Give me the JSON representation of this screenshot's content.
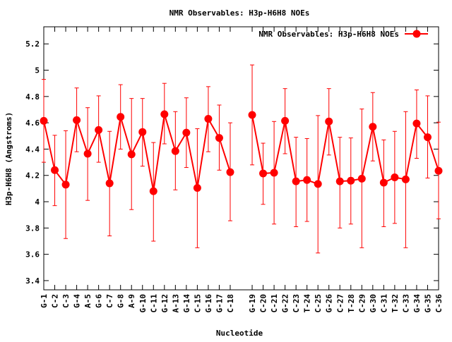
{
  "chart_data": {
    "type": "line",
    "title": "NMR Observables: H3p-H6H8 NOEs",
    "xlabel": "Nucleotide",
    "ylabel": "H3p-H6H8 (Angstroms)",
    "ylim": [
      3.33,
      5.33
    ],
    "yticks": [
      3.4,
      3.6,
      3.8,
      4,
      4.2,
      4.4,
      4.6,
      4.8,
      5,
      5.2
    ],
    "legend_position": "top-right",
    "grid": false,
    "colors": {
      "series": "#ff0000",
      "axis": "#000000"
    },
    "categories": [
      "G-1",
      "C-2",
      "C-3",
      "G-4",
      "A-5",
      "G-6",
      "C-7",
      "G-8",
      "A-9",
      "G-10",
      "C-11",
      "G-12",
      "A-13",
      "G-14",
      "C-15",
      "G-16",
      "G-17",
      "C-18",
      "G-19",
      "C-20",
      "C-21",
      "G-22",
      "C-23",
      "T-24",
      "C-25",
      "G-26",
      "C-27",
      "T-28",
      "C-29",
      "G-30",
      "C-31",
      "T-32",
      "C-33",
      "G-34",
      "G-35",
      "C-36"
    ],
    "x": [
      1,
      2,
      3,
      4,
      5,
      6,
      7,
      8,
      9,
      10,
      11,
      12,
      13,
      14,
      15,
      16,
      17,
      18,
      20,
      21,
      22,
      23,
      24,
      25,
      26,
      27,
      28,
      29,
      30,
      31,
      32,
      33,
      34,
      35,
      36,
      37
    ],
    "series": [
      {
        "name": "NMR Observables: H3p-H6H8 NOEs",
        "values": [
          4.615,
          4.24,
          4.13,
          4.62,
          4.365,
          4.545,
          4.14,
          4.645,
          4.36,
          4.53,
          4.08,
          4.665,
          4.385,
          4.525,
          4.105,
          4.63,
          4.485,
          4.225,
          4.66,
          4.215,
          4.22,
          4.615,
          4.155,
          4.165,
          4.135,
          4.61,
          4.155,
          4.16,
          4.175,
          4.57,
          4.145,
          4.185,
          4.17,
          4.595,
          4.49,
          4.235
        ],
        "error_low": [
          4.3,
          3.97,
          3.72,
          4.38,
          4.01,
          4.3,
          3.74,
          4.4,
          3.94,
          4.27,
          3.7,
          4.44,
          4.09,
          4.26,
          3.65,
          4.38,
          4.24,
          3.855,
          4.28,
          3.98,
          3.83,
          4.365,
          3.81,
          3.85,
          3.61,
          4.355,
          3.8,
          3.83,
          3.65,
          4.31,
          3.81,
          3.835,
          3.65,
          4.33,
          4.18,
          3.87
        ],
        "error_high": [
          4.93,
          4.505,
          4.54,
          4.865,
          4.715,
          4.805,
          4.535,
          4.89,
          4.785,
          4.785,
          4.45,
          4.9,
          4.685,
          4.79,
          4.555,
          4.875,
          4.735,
          4.6,
          5.04,
          4.445,
          4.61,
          4.86,
          4.49,
          4.48,
          4.655,
          4.86,
          4.49,
          4.485,
          4.705,
          4.83,
          4.47,
          4.535,
          4.685,
          4.85,
          4.805,
          4.605
        ]
      }
    ]
  }
}
